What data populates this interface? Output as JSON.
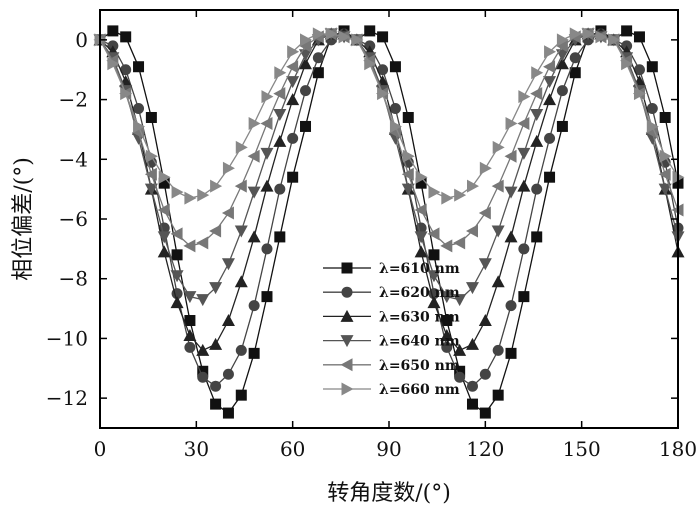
{
  "chart_data": {
    "type": "line",
    "title": "",
    "xlabel": "转角度数/(°)",
    "ylabel": "相位偏差/(°)",
    "xlim": [
      0,
      180
    ],
    "ylim": [
      -13,
      1
    ],
    "xticks": [
      0,
      30,
      60,
      90,
      120,
      150,
      180
    ],
    "yticks": [
      0,
      -2,
      -4,
      -6,
      -8,
      -10,
      -12
    ],
    "xtick_labels": [
      "0",
      "30",
      "60",
      "90",
      "120",
      "150",
      "180"
    ],
    "ytick_labels": [
      "0",
      "−2",
      "−4",
      "−6",
      "−8",
      "−10",
      "−12"
    ],
    "grid": false,
    "legend_position": "center-right",
    "x": [
      0,
      4,
      8,
      12,
      16,
      20,
      24,
      28,
      32,
      36,
      40,
      44,
      48,
      52,
      56,
      60,
      64,
      68,
      72,
      76,
      80,
      84,
      88,
      92,
      96,
      100,
      104,
      108,
      112,
      116,
      120,
      124,
      128,
      132,
      136,
      140,
      144,
      148,
      152,
      156,
      160,
      164,
      168,
      172,
      176,
      180
    ],
    "series": [
      {
        "name": "λ=610 nm",
        "marker": "square",
        "color": "#111111",
        "values": [
          0,
          0.3,
          0.1,
          -0.9,
          -2.6,
          -4.8,
          -7.2,
          -9.4,
          -11.1,
          -12.2,
          -12.5,
          -11.9,
          -10.5,
          -8.6,
          -6.6,
          -4.6,
          -2.9,
          -1.1,
          0.1,
          0.3,
          0,
          0.3,
          0.1,
          -0.9,
          -2.6,
          -4.8,
          -7.2,
          -9.4,
          -11.1,
          -12.2,
          -12.5,
          -11.9,
          -10.5,
          -8.6,
          -6.6,
          -4.6,
          -2.9,
          -1.1,
          0.1,
          0.3,
          0,
          0.3,
          0.1,
          -0.9,
          -2.6,
          -4.8
        ]
      },
      {
        "name": "λ=620 nm",
        "marker": "circle",
        "color": "#444444",
        "values": [
          0,
          -0.2,
          -1,
          -2.3,
          -4.1,
          -6.3,
          -8.5,
          -10.3,
          -11.3,
          -11.6,
          -11.2,
          -10.4,
          -8.9,
          -7,
          -5,
          -3.3,
          -1.7,
          -0.6,
          0,
          0.2,
          0,
          -0.2,
          -1,
          -2.3,
          -4.1,
          -6.3,
          -8.5,
          -10.3,
          -11.3,
          -11.6,
          -11.2,
          -10.4,
          -8.9,
          -7,
          -5,
          -3.3,
          -1.7,
          -0.6,
          0,
          0.2,
          0,
          -0.2,
          -1,
          -2.3,
          -4.1,
          -6.3
        ]
      },
      {
        "name": "λ=630 nm",
        "marker": "triangle-up",
        "color": "#222222",
        "values": [
          0,
          -0.4,
          -1.4,
          -3,
          -5,
          -7.1,
          -8.8,
          -9.9,
          -10.4,
          -10.2,
          -9.4,
          -8.1,
          -6.6,
          -4.9,
          -3.4,
          -2,
          -0.8,
          0,
          0.2,
          0.2,
          0,
          -0.4,
          -1.4,
          -3,
          -5,
          -7.1,
          -8.8,
          -9.9,
          -10.4,
          -10.2,
          -9.4,
          -8.1,
          -6.6,
          -4.9,
          -3.4,
          -2,
          -0.8,
          0,
          0.2,
          0.2,
          0,
          -0.4,
          -1.4,
          -3,
          -5,
          -7.1
        ]
      },
      {
        "name": "λ=640 nm",
        "marker": "triangle-down",
        "color": "#555555",
        "values": [
          0,
          -0.6,
          -1.7,
          -3.3,
          -5,
          -6.6,
          -7.9,
          -8.6,
          -8.7,
          -8.3,
          -7.5,
          -6.4,
          -5.1,
          -3.8,
          -2.5,
          -1.4,
          -0.5,
          0,
          0.2,
          0.1,
          0,
          -0.6,
          -1.7,
          -3.3,
          -5,
          -6.6,
          -7.9,
          -8.6,
          -8.7,
          -8.3,
          -7.5,
          -6.4,
          -5.1,
          -3.8,
          -2.5,
          -1.4,
          -0.5,
          0,
          0.2,
          0.1,
          0,
          -0.6,
          -1.7,
          -3.3,
          -5,
          -6.6
        ]
      },
      {
        "name": "λ=650 nm",
        "marker": "triangle-left",
        "color": "#777777",
        "values": [
          0,
          -0.7,
          -1.8,
          -3.1,
          -4.5,
          -5.7,
          -6.5,
          -6.9,
          -6.8,
          -6.4,
          -5.8,
          -4.9,
          -3.9,
          -2.8,
          -1.8,
          -0.9,
          -0.2,
          0.1,
          0.2,
          0.1,
          0,
          -0.7,
          -1.8,
          -3.1,
          -4.5,
          -5.7,
          -6.5,
          -6.9,
          -6.8,
          -6.4,
          -5.8,
          -4.9,
          -3.9,
          -2.8,
          -1.8,
          -0.9,
          -0.2,
          0.1,
          0.2,
          0.1,
          0,
          -0.7,
          -1.8,
          -3.1,
          -4.5,
          -5.7
        ]
      },
      {
        "name": "λ=660 nm",
        "marker": "triangle-right",
        "color": "#888888",
        "values": [
          0,
          -0.8,
          -1.8,
          -2.9,
          -3.9,
          -4.6,
          -5.1,
          -5.3,
          -5.2,
          -4.9,
          -4.3,
          -3.6,
          -2.8,
          -1.9,
          -1.1,
          -0.4,
          0,
          0.2,
          0.2,
          0.1,
          0,
          -0.8,
          -1.8,
          -2.9,
          -3.9,
          -4.6,
          -5.1,
          -5.3,
          -5.2,
          -4.9,
          -4.3,
          -3.6,
          -2.8,
          -1.9,
          -1.1,
          -0.4,
          0,
          0.2,
          0.2,
          0.1,
          0,
          -0.8,
          -1.8,
          -2.9,
          -3.9,
          -4.6
        ]
      }
    ]
  }
}
